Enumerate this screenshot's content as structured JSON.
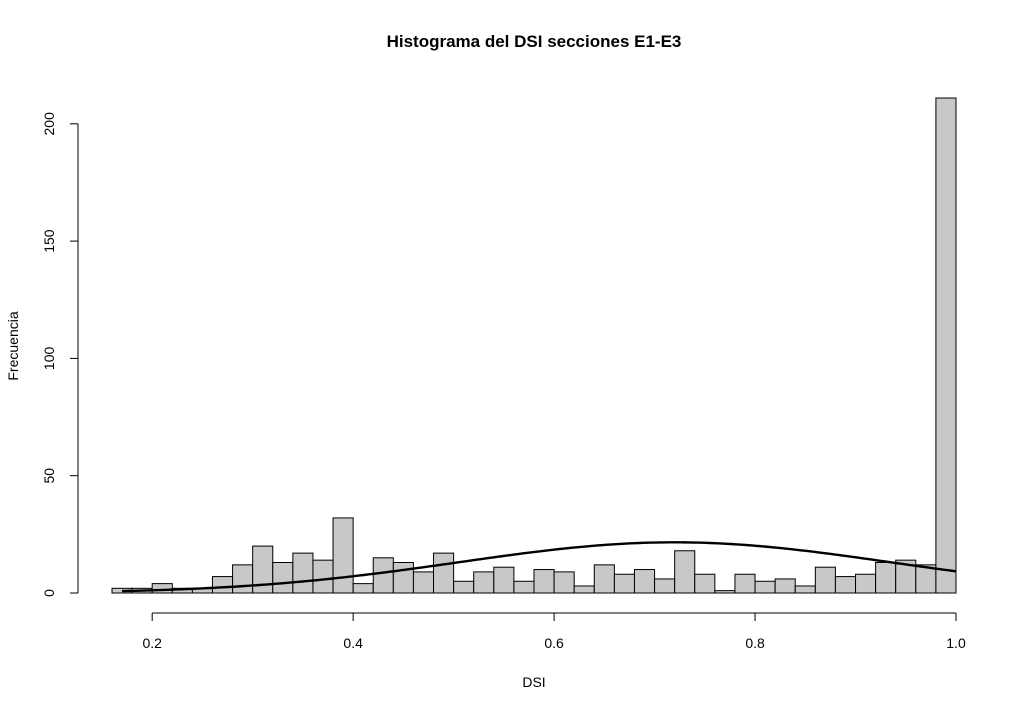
{
  "chart_data": {
    "type": "bar",
    "title": "Histograma del DSI secciones E1-E3",
    "xlabel": "DSI",
    "ylabel": "Frecuencia",
    "xlim": [
      0.16,
      1.0
    ],
    "ylim": [
      0,
      211
    ],
    "x_ticks": [
      0.2,
      0.4,
      0.6,
      0.8,
      1.0
    ],
    "x_tick_labels": [
      "0.2",
      "0.4",
      "0.6",
      "0.8",
      "1.0"
    ],
    "y_ticks": [
      0,
      50,
      100,
      150,
      200
    ],
    "y_tick_labels": [
      "0",
      "50",
      "100",
      "150",
      "200"
    ],
    "bin_width": 0.02,
    "bin_start": 0.16,
    "values": [
      2,
      2,
      4,
      2,
      2,
      7,
      12,
      20,
      13,
      17,
      14,
      32,
      4,
      15,
      13,
      9,
      17,
      5,
      9,
      11,
      5,
      10,
      9,
      3,
      12,
      8,
      10,
      6,
      18,
      8,
      1,
      8,
      5,
      6,
      3,
      11,
      7,
      8,
      13,
      14,
      12,
      211
    ],
    "curve": {
      "type": "normal-density",
      "mean": 0.72,
      "sd": 0.215,
      "scale": 21.6
    },
    "grid": false,
    "legend": false,
    "colors": {
      "bar_fill": "#c8c8c8",
      "bar_stroke": "#000000",
      "curve": "#000000"
    }
  }
}
